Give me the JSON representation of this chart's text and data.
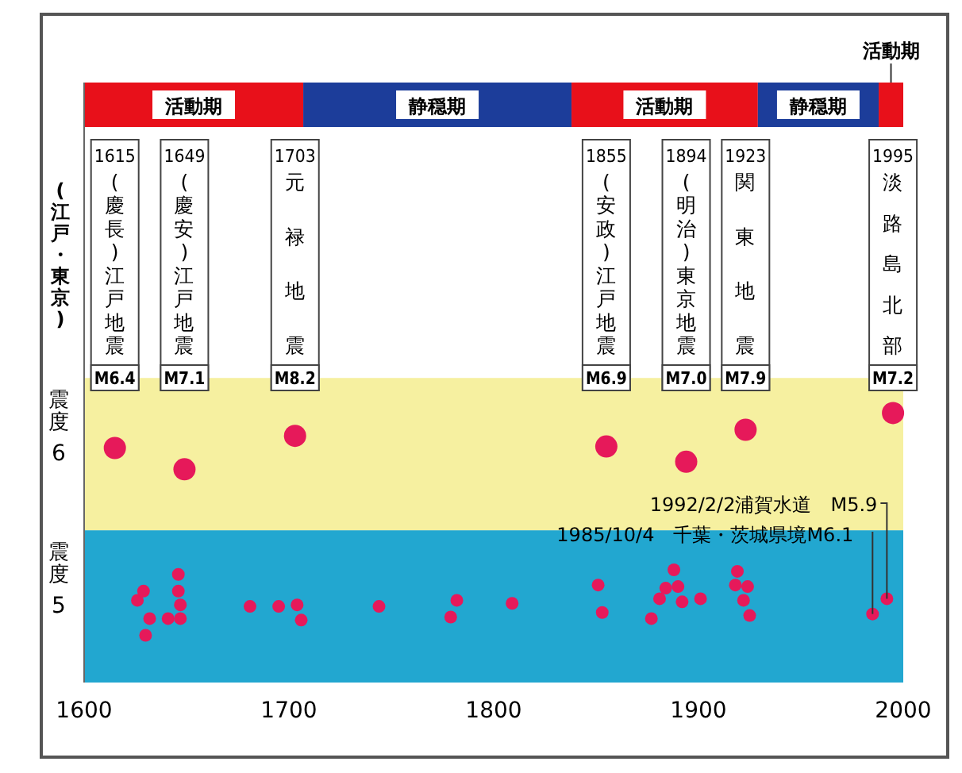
{
  "chart_data": {
    "type": "scatter",
    "ylabel": "(江戸・東京)",
    "xlim": [
      1600,
      2000
    ],
    "xticks": [
      1600,
      1700,
      1800,
      1900,
      2000
    ],
    "ylim": [
      4.5,
      8.44
    ],
    "yticks": [
      5,
      6
    ],
    "marker": "circle",
    "series": [
      {
        "color": "#e6195a",
        "x": [
          1615,
          1649,
          1703,
          1855,
          1894,
          1923,
          1995
        ],
        "values": [
          6.04,
          5.9,
          6.12,
          6.05,
          5.95,
          6.16,
          6.27
        ]
      },
      {
        "color": "#e6195a",
        "x": [
          1626,
          1629,
          1632,
          1630,
          1641,
          1646,
          1646,
          1647,
          1647,
          1681,
          1695,
          1704,
          1706,
          1744,
          1779,
          1782,
          1809,
          1851,
          1853,
          1877,
          1881,
          1884,
          1888,
          1890,
          1892,
          1901,
          1919,
          1918,
          1924,
          1922,
          1925,
          1985,
          1992
        ],
        "values": [
          5.04,
          5.1,
          4.92,
          4.81,
          4.92,
          5.21,
          5.1,
          5.01,
          4.92,
          5.0,
          5.0,
          5.01,
          4.91,
          5.0,
          4.93,
          5.04,
          5.02,
          5.14,
          4.96,
          4.92,
          5.05,
          5.12,
          5.24,
          5.13,
          5.03,
          5.05,
          5.23,
          5.14,
          5.13,
          5.04,
          4.94,
          4.95,
          5.05
        ]
      }
    ],
    "bands": [
      {
        "axis": "x",
        "from": 1600,
        "to": 1707,
        "label": "活動期",
        "color": "#e8101a"
      },
      {
        "axis": "x",
        "from": 1707,
        "to": 1838,
        "label": "静穏期",
        "color": "#1c3d9a"
      },
      {
        "axis": "x",
        "from": 1838,
        "to": 1929,
        "label": "活動期",
        "color": "#e8101a"
      },
      {
        "axis": "x",
        "from": 1929,
        "to": 1988,
        "label": "静穏期",
        "color": "#1c3d9a"
      },
      {
        "axis": "x",
        "from": 1988,
        "to": 2000,
        "label": "活動期",
        "color": "#e8101a"
      },
      {
        "axis": "y",
        "from": 4.5,
        "to": 5.5,
        "color": "#22a7d0"
      },
      {
        "axis": "y",
        "from": 5.5,
        "to": 6.5,
        "color": "#f6f0a0"
      }
    ],
    "annotations": [
      "震度",
      "震度",
      "1615\n(慶長)江戸地震\nM6.4",
      "1649\n(慶安)江戸地震\nM7.1",
      "1703\n元禄地震\nM8.2",
      "1855\n(安政)江戸地震\nM6.9",
      "1894\n(明治)東京地震\nM7.0",
      "1923\n関東地震\nM7.9",
      "1995\n淡路島北部\nM7.2",
      {
        "text": "1992/2/2浦賀水道　M5.9",
        "x": 1992,
        "y": 5.05
      },
      {
        "text": "1985/10/4　千葉・茨城県境M6.1",
        "x": 1985,
        "y": 4.95
      }
    ]
  }
}
